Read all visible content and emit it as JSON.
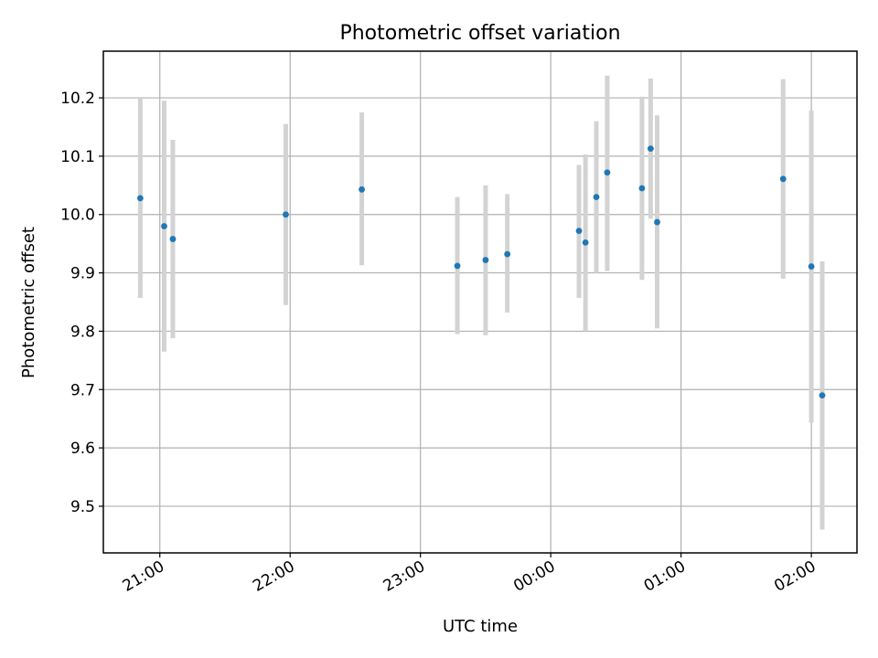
{
  "chart_data": {
    "type": "scatter",
    "title": "Photometric offset variation",
    "xlabel": "UTC time",
    "ylabel": "Photometric offset",
    "x_ticks": [
      "21:00",
      "22:00",
      "23:00",
      "00:00",
      "01:00",
      "02:00"
    ],
    "y_ticks": [
      "9.5",
      "9.6",
      "9.7",
      "9.8",
      "9.9",
      "10.0",
      "10.1",
      "10.2"
    ],
    "xlim": [
      "20:34",
      "02:21"
    ],
    "ylim": [
      9.42,
      10.28
    ],
    "grid": true,
    "colors": {
      "point": "#1f77b4",
      "errorbar": "#d3d3d3"
    },
    "points": [
      {
        "x": "20:51",
        "y": 10.028,
        "lo": 9.857,
        "hi": 10.2
      },
      {
        "x": "21:02",
        "y": 9.98,
        "lo": 9.765,
        "hi": 10.195
      },
      {
        "x": "21:06",
        "y": 9.958,
        "lo": 9.788,
        "hi": 10.128
      },
      {
        "x": "21:58",
        "y": 10.0,
        "lo": 9.845,
        "hi": 10.155
      },
      {
        "x": "22:33",
        "y": 10.043,
        "lo": 9.913,
        "hi": 10.175
      },
      {
        "x": "23:17",
        "y": 9.912,
        "lo": 9.795,
        "hi": 10.03
      },
      {
        "x": "23:30",
        "y": 9.922,
        "lo": 9.793,
        "hi": 10.05
      },
      {
        "x": "23:40",
        "y": 9.932,
        "lo": 9.832,
        "hi": 10.035
      },
      {
        "x": "00:13",
        "y": 9.972,
        "lo": 9.857,
        "hi": 10.085
      },
      {
        "x": "00:16",
        "y": 9.952,
        "lo": 9.8,
        "hi": 10.103
      },
      {
        "x": "00:21",
        "y": 10.03,
        "lo": 9.9,
        "hi": 10.16
      },
      {
        "x": "00:26",
        "y": 10.072,
        "lo": 9.903,
        "hi": 10.238
      },
      {
        "x": "00:42",
        "y": 10.045,
        "lo": 9.888,
        "hi": 10.202
      },
      {
        "x": "00:46",
        "y": 10.113,
        "lo": 9.993,
        "hi": 10.233
      },
      {
        "x": "00:49",
        "y": 9.987,
        "lo": 9.805,
        "hi": 10.17
      },
      {
        "x": "01:47",
        "y": 10.061,
        "lo": 9.89,
        "hi": 10.232
      },
      {
        "x": "02:00",
        "y": 9.911,
        "lo": 9.643,
        "hi": 10.178
      },
      {
        "x": "02:05",
        "y": 9.69,
        "lo": 9.46,
        "hi": 9.92
      }
    ]
  }
}
